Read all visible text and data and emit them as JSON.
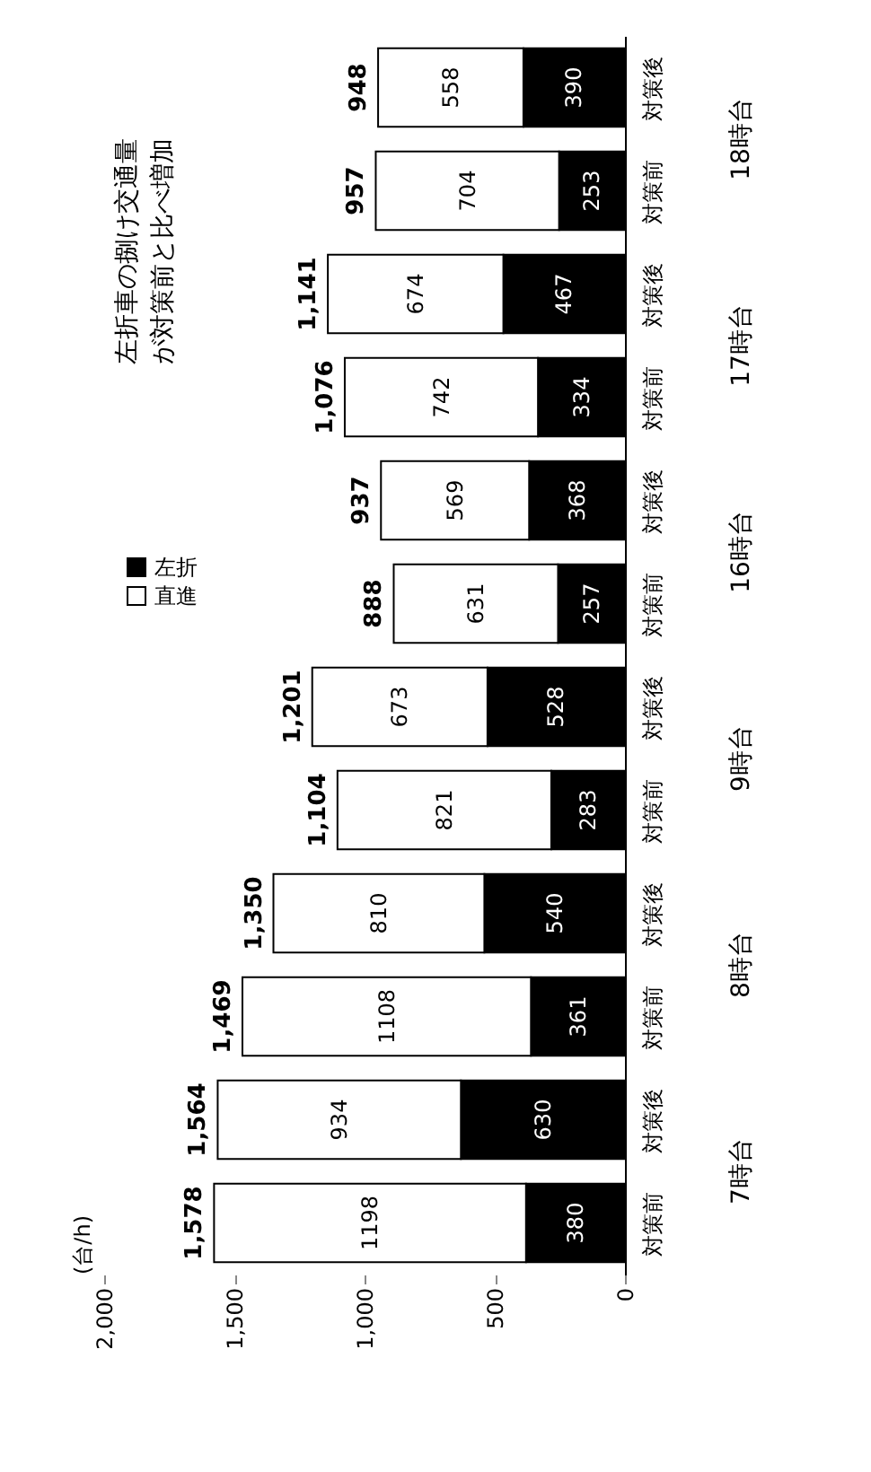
{
  "chart_data": {
    "type": "bar",
    "orientation": "horizontal",
    "stacked": true,
    "categories": [
      "対策後",
      "対策前",
      "対策後",
      "対策前",
      "対策後",
      "対策前",
      "対策後",
      "対策前",
      "対策後",
      "対策前",
      "対策後",
      "対策前"
    ],
    "series": [
      {
        "name": "左折",
        "color": "#000000",
        "values": [
          390,
          253,
          467,
          334,
          368,
          257,
          528,
          283,
          540,
          361,
          630,
          380
        ]
      },
      {
        "name": "直進",
        "color": "#ffffff",
        "values": [
          558,
          704,
          674,
          742,
          569,
          631,
          673,
          821,
          810,
          1108,
          934,
          1198
        ]
      }
    ],
    "totals": [
      "948",
      "957",
      "1,141",
      "1,076",
      "937",
      "888",
      "1,201",
      "1,104",
      "1,350",
      "1,469",
      "1,564",
      "1,578"
    ],
    "data_labels": true,
    "ylabel": "(台/h)",
    "xlim": [
      2000,
      0
    ],
    "xticks": [
      {
        "value": 2000,
        "label": "2,000"
      },
      {
        "value": 1500,
        "label": "1,500"
      },
      {
        "value": 1000,
        "label": "1,000"
      },
      500,
      0
    ],
    "grid": false,
    "legend": "left",
    "annotations": [
      "左折車の捌け交通量",
      "が対策前と比べ増加",
      "18時台",
      "17時台",
      "16時台",
      "9時台",
      "8時台",
      "7時台"
    ]
  }
}
